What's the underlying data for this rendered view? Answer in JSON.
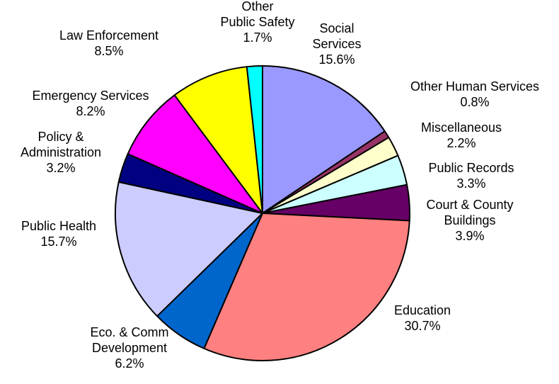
{
  "chart_data": {
    "type": "pie",
    "slices": [
      {
        "label": "Social Services",
        "label_lines": [
          "Social",
          "Services"
        ],
        "value": 15.6,
        "value_label": "15.6%",
        "color": "#9999ff"
      },
      {
        "label": "Other Human Services",
        "label_lines": [
          "Other Human Services"
        ],
        "value": 0.8,
        "value_label": "0.8%",
        "color": "#993366"
      },
      {
        "label": "Miscellaneous",
        "label_lines": [
          "Miscellaneous"
        ],
        "value": 2.2,
        "value_label": "2.2%",
        "color": "#ffffcc"
      },
      {
        "label": "Public Records",
        "label_lines": [
          "Public Records"
        ],
        "value": 3.3,
        "value_label": "3.3%",
        "color": "#ccffff"
      },
      {
        "label": "Court & County Buildings",
        "label_lines": [
          "Court & County",
          "Buildings"
        ],
        "value": 3.9,
        "value_label": "3.9%",
        "color": "#660066"
      },
      {
        "label": "Education",
        "label_lines": [
          "Education"
        ],
        "value": 30.7,
        "value_label": "30.7%",
        "color": "#ff8080"
      },
      {
        "label": "Eco. & Comm Development",
        "label_lines": [
          "Eco. & Comm",
          "Development"
        ],
        "value": 6.2,
        "value_label": "6.2%",
        "color": "#0066cc"
      },
      {
        "label": "Public Health",
        "label_lines": [
          "Public Health"
        ],
        "value": 15.7,
        "value_label": "15.7%",
        "color": "#ccccff"
      },
      {
        "label": "Policy & Administration",
        "label_lines": [
          "Policy &",
          "Administration"
        ],
        "value": 3.2,
        "value_label": "3.2%",
        "color": "#000080"
      },
      {
        "label": "Emergency Services",
        "label_lines": [
          "Emergency Services"
        ],
        "value": 8.2,
        "value_label": "8.2%",
        "color": "#ff00ff"
      },
      {
        "label": "Law Enforcement",
        "label_lines": [
          "Law Enforcement"
        ],
        "value": 8.5,
        "value_label": "8.5%",
        "color": "#ffff00"
      },
      {
        "label": "Other Public Safety",
        "label_lines": [
          "Other",
          "Public Safety"
        ],
        "value": 1.7,
        "value_label": "1.7%",
        "color": "#00ffff"
      }
    ],
    "start_angle_deg": 0,
    "direction": "clockwise",
    "legend": "none"
  }
}
